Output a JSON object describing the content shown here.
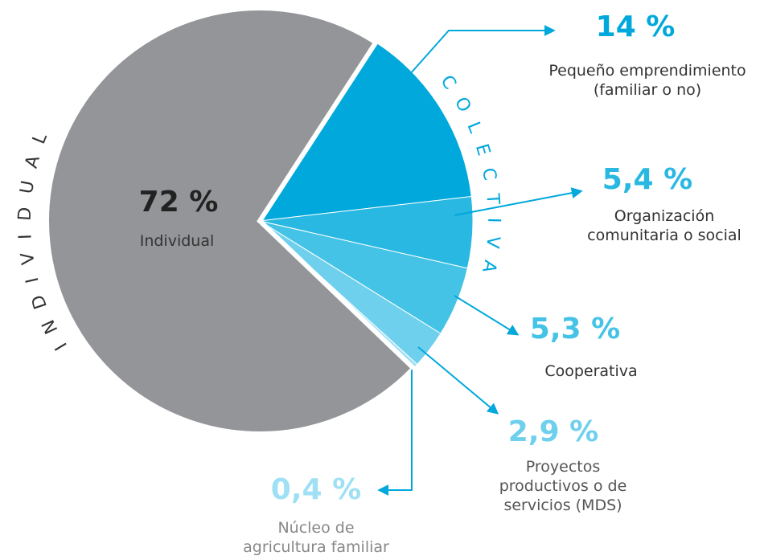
{
  "chart_data": {
    "type": "pie",
    "categories": [
      "Pequeño emprendimiento (familiar o no)",
      "Organización comunitaria o social",
      "Cooperativa",
      "Proyectos productivos o de servicios (MDS)",
      "Núcleo de agricultura familiar",
      "Individual"
    ],
    "values": [
      14,
      5.4,
      5.3,
      2.9,
      0.4,
      72
    ],
    "value_labels": [
      "14 %",
      "5,4 %",
      "5,3 %",
      "2,9 %",
      "0,4 %",
      "72 %"
    ],
    "colors": [
      "#00a8dc",
      "#29b8e2",
      "#45c3e6",
      "#6fd0ee",
      "#9fe0f4",
      "#939598"
    ],
    "group_labels": [
      "INDIVIDUAL",
      "COLECTIVA"
    ]
  }
}
